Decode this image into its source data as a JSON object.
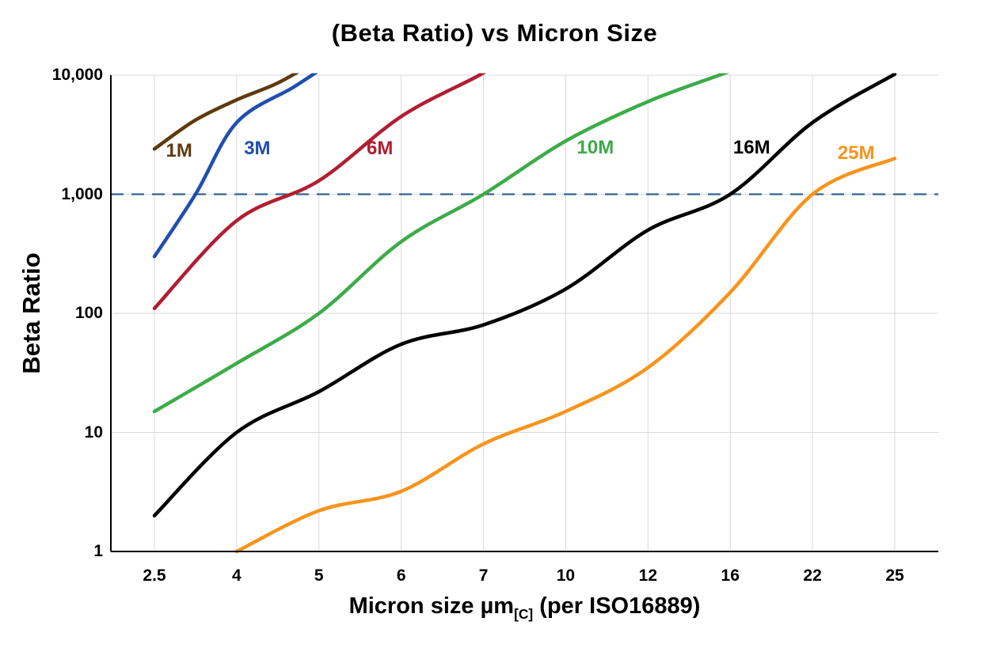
{
  "page": {
    "background": "#ffffff"
  },
  "chart_data": {
    "type": "line",
    "title": "(Beta Ratio) vs Micron Size",
    "ylabel": "Beta Ratio",
    "xlabel_parts": {
      "main": "Micron size µm",
      "subscript": "[C]",
      "suffix": " (per ISO16889)"
    },
    "x_categories": [
      "2.5",
      "4",
      "5",
      "6",
      "7",
      "10",
      "12",
      "16",
      "22",
      "25"
    ],
    "y_scale": "log",
    "ylim": [
      1,
      10000
    ],
    "y_ticks": [
      {
        "label": "1",
        "value": 1
      },
      {
        "label": "10",
        "value": 10
      },
      {
        "label": "100",
        "value": 100
      },
      {
        "label": "1,000",
        "value": 1000
      },
      {
        "label": "10,000",
        "value": 10000
      }
    ],
    "grid": true,
    "grid_color": "#d9d9d9",
    "axis_color": "#000000",
    "legend_position": "inline-labels",
    "reference_line": {
      "value": 1000,
      "color": "#33638c",
      "style": "dashed"
    },
    "series": [
      {
        "name": "1M",
        "color": "#5e3a0e",
        "label_at": [
          0.3,
          2300
        ],
        "points": [
          [
            0,
            2400
          ],
          [
            0.5,
            4200
          ],
          [
            1,
            6200
          ],
          [
            1.5,
            8600
          ],
          [
            2,
            13500
          ]
        ]
      },
      {
        "name": "3M",
        "color": "#1f4fae",
        "label_at": [
          1.25,
          2400
        ],
        "points": [
          [
            0,
            300
          ],
          [
            0.5,
            1000
          ],
          [
            1,
            4000
          ],
          [
            1.7,
            8000
          ],
          [
            2.2,
            13500
          ]
        ]
      },
      {
        "name": "6M",
        "color": "#b01e32",
        "label_at": [
          2.74,
          2400
        ],
        "points": [
          [
            0,
            110
          ],
          [
            1,
            600
          ],
          [
            2,
            1300
          ],
          [
            3,
            4500
          ],
          [
            3.95,
            10000
          ],
          [
            4.3,
            14500
          ]
        ]
      },
      {
        "name": "10M",
        "color": "#3dab49",
        "label_at": [
          5.36,
          2450
        ],
        "points": [
          [
            0,
            15
          ],
          [
            1,
            38
          ],
          [
            2,
            100
          ],
          [
            3,
            400
          ],
          [
            4,
            1000
          ],
          [
            5,
            2800
          ],
          [
            6,
            6000
          ],
          [
            6.95,
            10500
          ],
          [
            7.2,
            12500
          ]
        ]
      },
      {
        "name": "16M",
        "color": "#000000",
        "label_at": [
          7.26,
          2450
        ],
        "points": [
          [
            0,
            2
          ],
          [
            1,
            10
          ],
          [
            2,
            22
          ],
          [
            3,
            55
          ],
          [
            4,
            80
          ],
          [
            5,
            160
          ],
          [
            6,
            500
          ],
          [
            7,
            1000
          ],
          [
            8,
            4000
          ],
          [
            9,
            10200
          ]
        ]
      },
      {
        "name": "25M",
        "color": "#f7941d",
        "label_at": [
          8.53,
          2200
        ],
        "points": [
          [
            1,
            1
          ],
          [
            2,
            2.2
          ],
          [
            3,
            3.2
          ],
          [
            4,
            8
          ],
          [
            5,
            15
          ],
          [
            6,
            35
          ],
          [
            7,
            150
          ],
          [
            8,
            1000
          ],
          [
            9,
            2000
          ]
        ]
      }
    ]
  }
}
